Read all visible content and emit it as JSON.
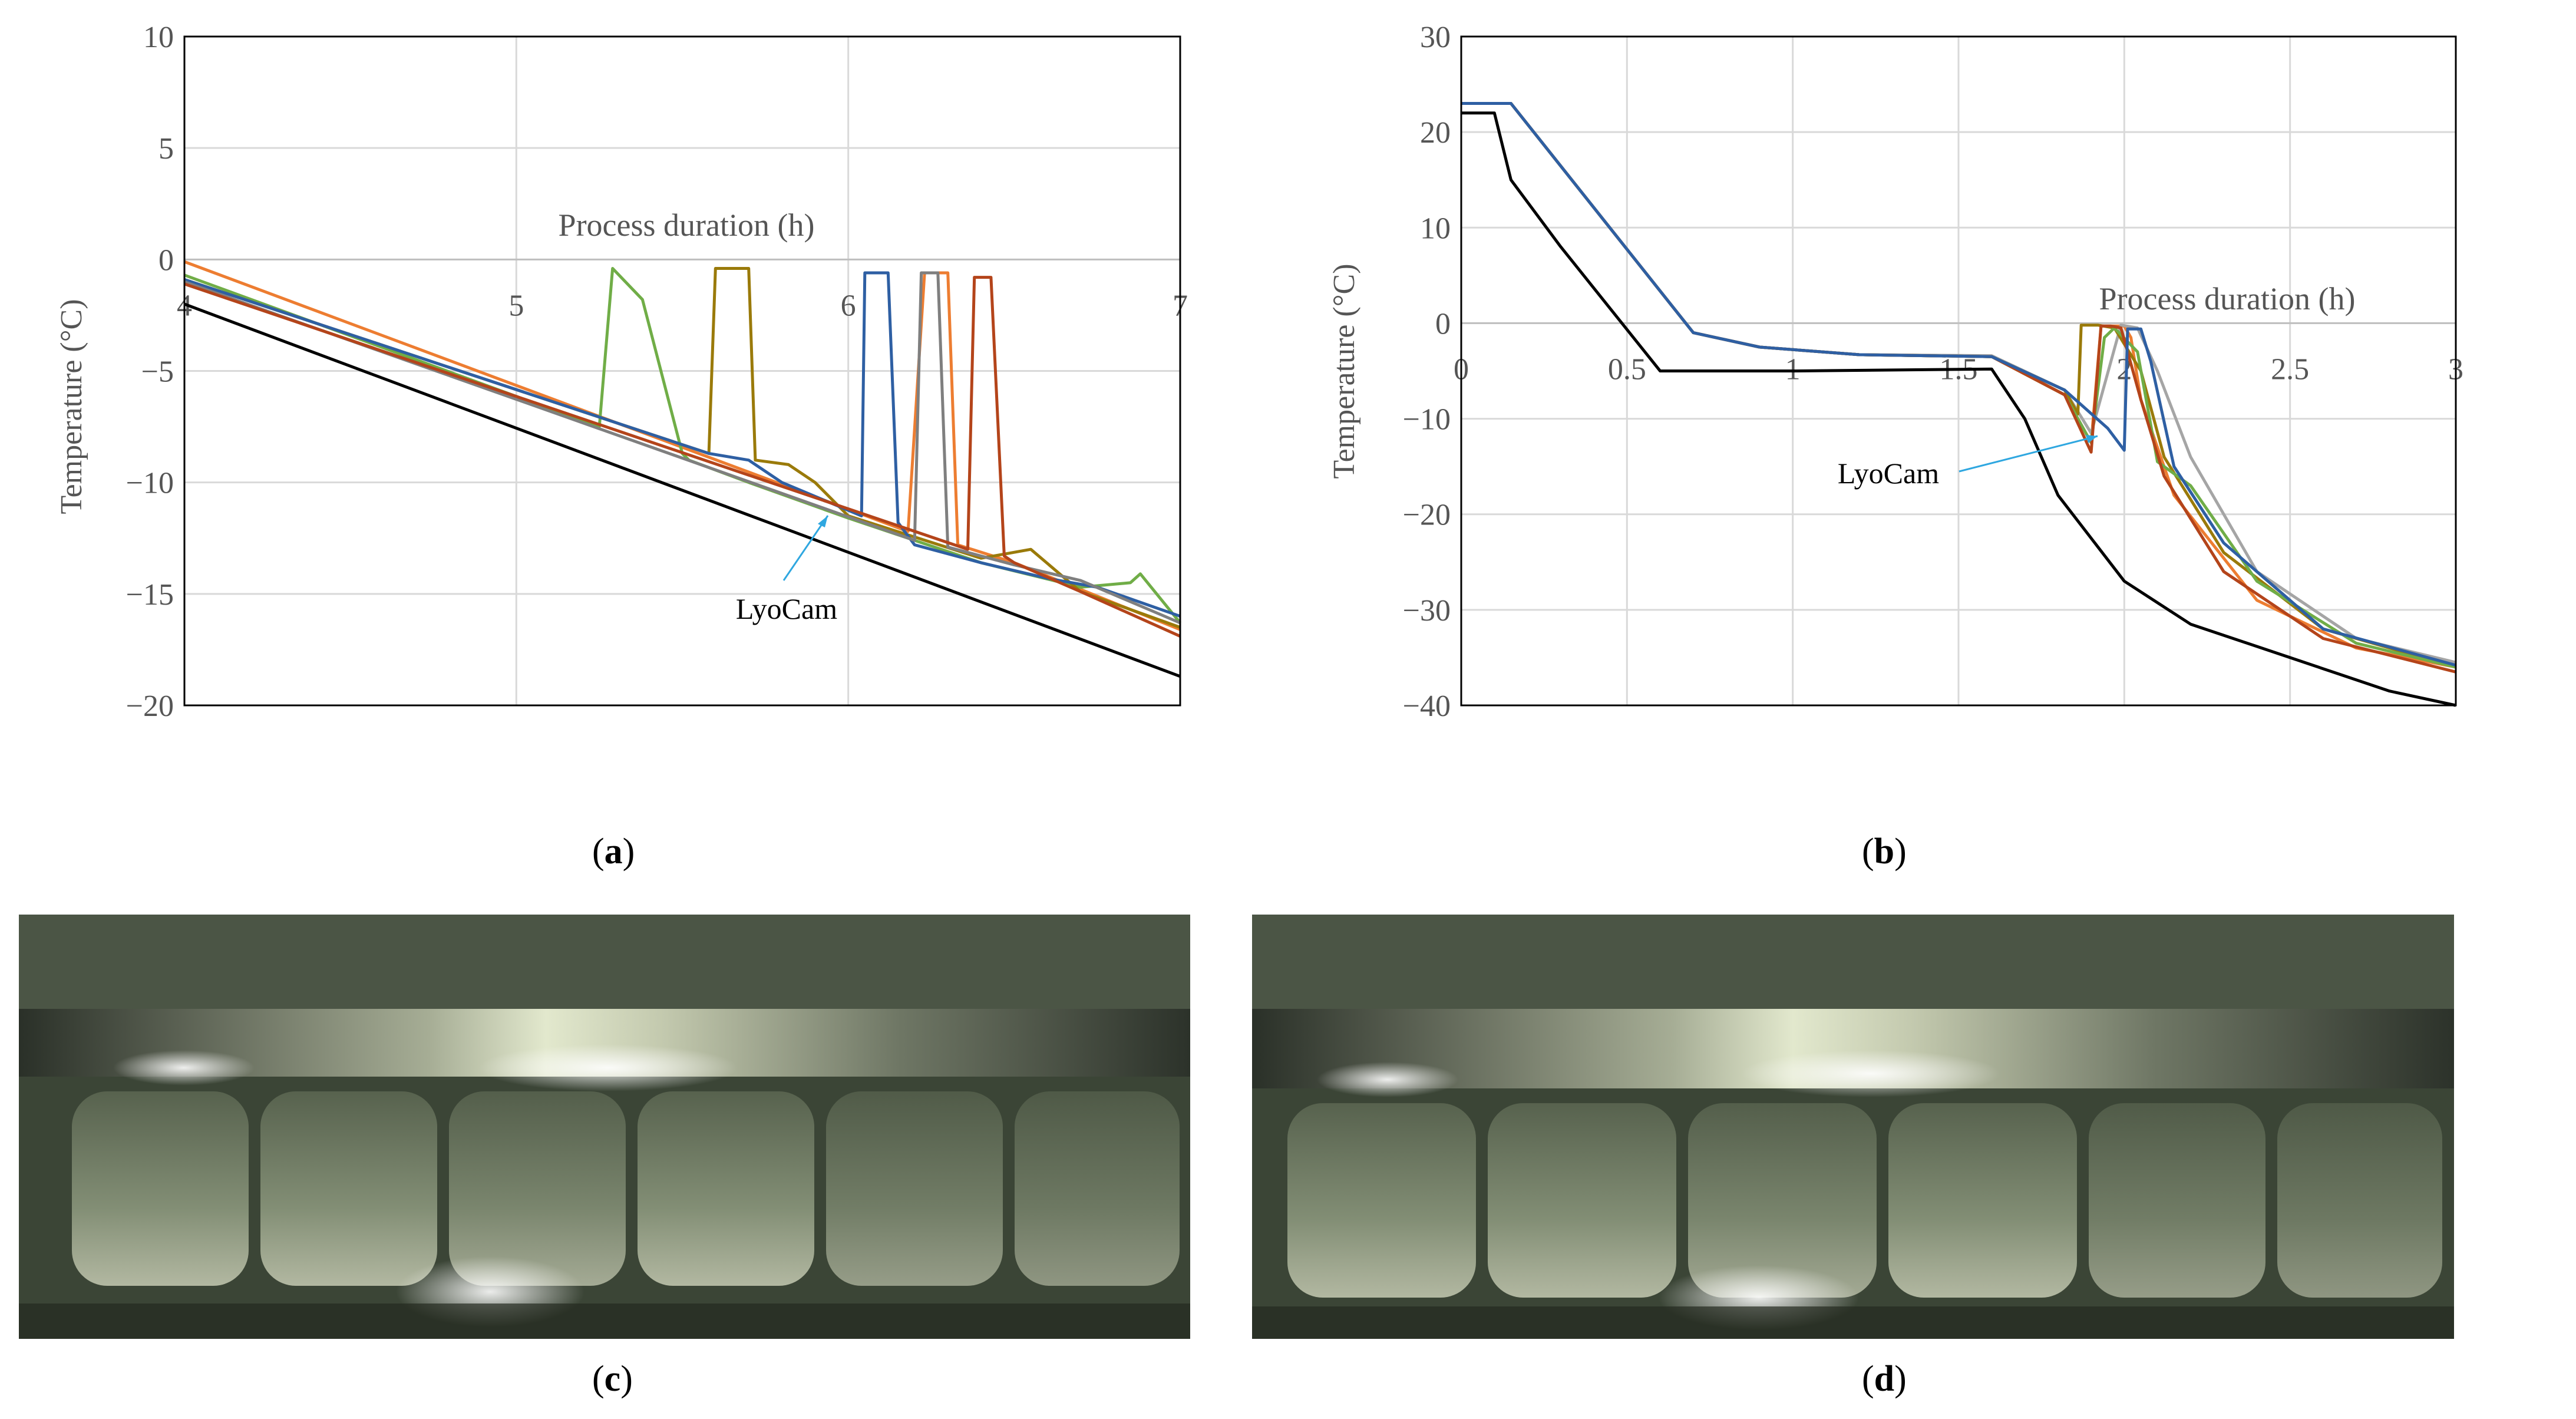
{
  "chart_data": [
    {
      "type": "line",
      "panel": "a",
      "xlabel": "Process duration (h)",
      "ylabel": "Temperature (°C)",
      "xlim": [
        4,
        7
      ],
      "ylim": [
        -20,
        10
      ],
      "xticks": [
        4,
        5,
        6,
        7
      ],
      "yticks": [
        10,
        5,
        0,
        -5,
        -10,
        -15,
        -20
      ],
      "ytick_labels": [
        "10",
        "5",
        "0",
        "−5",
        "−10",
        "−15",
        "−20"
      ],
      "grid": true,
      "annotation": "LyoCam",
      "annotation_point": [
        5.93,
        -11.4
      ],
      "series": [
        {
          "name": "black",
          "color": "#000000",
          "x": [
            4,
            7
          ],
          "y": [
            -2.0,
            -18.7
          ]
        },
        {
          "name": "orange",
          "color": "#ed7d31",
          "x": [
            4,
            6.18,
            6.23,
            6.3,
            6.33,
            6.5,
            6.75,
            7
          ],
          "y": [
            -0.1,
            -12.2,
            -0.6,
            -0.6,
            -12.8,
            -13.6,
            -15.1,
            -16.6
          ]
        },
        {
          "name": "green",
          "color": "#70ad47",
          "x": [
            4,
            5.25,
            5.29,
            5.38,
            5.5,
            5.52,
            5.7,
            6.0,
            6.4,
            6.7,
            6.85,
            6.88,
            7
          ],
          "y": [
            -0.7,
            -7.5,
            -0.4,
            -1.8,
            -8.7,
            -9.0,
            -10.0,
            -11.6,
            -13.6,
            -14.7,
            -14.5,
            -14.1,
            -16.3
          ]
        },
        {
          "name": "olive",
          "color": "#9a7a0a",
          "x": [
            4,
            5.58,
            5.6,
            5.7,
            5.72,
            5.82,
            5.9,
            6.0,
            6.4,
            6.55,
            6.7,
            7
          ],
          "y": [
            -0.9,
            -8.7,
            -0.4,
            -0.4,
            -9.0,
            -9.2,
            -10.0,
            -11.5,
            -13.4,
            -13.0,
            -14.9,
            -16.5
          ]
        },
        {
          "name": "blue",
          "color": "#2e5fa3",
          "x": [
            4,
            5.58,
            5.7,
            5.8,
            6.04,
            6.05,
            6.12,
            6.15,
            6.2,
            6.4,
            6.6,
            6.75,
            7
          ],
          "y": [
            -0.9,
            -8.7,
            -9.0,
            -10.0,
            -11.5,
            -0.6,
            -0.6,
            -11.8,
            -12.8,
            -13.6,
            -14.3,
            -14.7,
            -16.0
          ]
        },
        {
          "name": "gray",
          "color": "#7f7f7f",
          "x": [
            4,
            6.2,
            6.22,
            6.27,
            6.3,
            6.5,
            6.7,
            7
          ],
          "y": [
            -1.0,
            -12.6,
            -0.6,
            -0.6,
            -12.9,
            -13.7,
            -14.4,
            -16.3
          ]
        },
        {
          "name": "brown",
          "color": "#b4441a",
          "x": [
            4,
            6.36,
            6.38,
            6.43,
            6.47,
            6.5,
            6.7,
            7
          ],
          "y": [
            -1.1,
            -13.0,
            -0.8,
            -0.8,
            -13.3,
            -13.6,
            -14.9,
            -16.9
          ]
        }
      ]
    },
    {
      "type": "line",
      "panel": "b",
      "xlabel": "Process duration (h)",
      "ylabel": "Temperature (°C)",
      "xlim": [
        0,
        3
      ],
      "ylim": [
        -40,
        30
      ],
      "xticks": [
        0,
        0.5,
        1,
        1.5,
        2,
        2.5,
        3
      ],
      "xtick_labels": [
        "0",
        "0.5",
        "1",
        "1.5",
        "2",
        "2.5",
        "3"
      ],
      "yticks": [
        30,
        20,
        10,
        0,
        -10,
        -20,
        -30,
        -40
      ],
      "ytick_labels": [
        "30",
        "20",
        "10",
        "0",
        "−10",
        "−20",
        "−30",
        "−40"
      ],
      "grid": true,
      "annotation": "LyoCam",
      "annotation_point": [
        1.92,
        -10.5
      ],
      "series": [
        {
          "name": "black",
          "color": "#000000",
          "x": [
            0,
            0.1,
            0.15,
            0.3,
            0.6,
            1.0,
            1.6,
            1.7,
            1.8,
            2.0,
            2.2,
            2.5,
            2.8,
            3.0
          ],
          "y": [
            22.0,
            22.0,
            15.0,
            8.0,
            -5.0,
            -5.0,
            -4.8,
            -10.0,
            -18.0,
            -27.0,
            -31.5,
            -35.0,
            -38.5,
            -40.0
          ]
        },
        {
          "name": "orange",
          "color": "#ed7d31",
          "x": [
            0,
            0.15,
            0.7,
            0.9,
            1.2,
            1.6,
            1.82,
            1.9,
            1.93,
            1.96,
            2.0,
            2.02,
            2.05,
            2.15,
            2.4,
            2.7,
            3.0
          ],
          "y": [
            23,
            23,
            -1,
            -2.5,
            -3.3,
            -3.5,
            -7.5,
            -12.5,
            -0.3,
            -0.3,
            -0.3,
            -1.5,
            -8.0,
            -18.0,
            -29.0,
            -34.0,
            -36.0
          ]
        },
        {
          "name": "gray",
          "color": "#a5a5a5",
          "x": [
            0,
            0.15,
            0.7,
            0.9,
            1.2,
            1.6,
            1.82,
            1.9,
            1.99,
            2.04,
            2.1,
            2.2,
            2.4,
            2.7,
            3.0
          ],
          "y": [
            23,
            23,
            -1,
            -2.5,
            -3.3,
            -3.4,
            -7.0,
            -11.5,
            -0.2,
            -0.5,
            -5.0,
            -14.0,
            -26.0,
            -33.0,
            -35.5
          ]
        },
        {
          "name": "olive",
          "color": "#9a7a0a",
          "x": [
            0,
            0.15,
            0.7,
            0.9,
            1.2,
            1.6,
            1.82,
            1.86,
            1.87,
            1.92,
            1.97,
            2.05,
            2.12,
            2.3,
            2.6,
            3.0
          ],
          "y": [
            23,
            23,
            -1,
            -2.5,
            -3.3,
            -3.5,
            -7.0,
            -9.5,
            -0.2,
            -0.2,
            -0.5,
            -5.0,
            -14.0,
            -24.0,
            -32.0,
            -36.0
          ]
        },
        {
          "name": "green",
          "color": "#70ad47",
          "x": [
            0,
            0.15,
            0.7,
            0.9,
            1.2,
            1.6,
            1.82,
            1.9,
            1.94,
            1.97,
            2.04,
            2.1,
            2.2,
            2.4,
            2.7,
            3.0
          ],
          "y": [
            23,
            23,
            -1,
            -2.5,
            -3.3,
            -3.5,
            -7.5,
            -12.5,
            -1.5,
            -0.5,
            -3.0,
            -14.5,
            -17.0,
            -27.0,
            -33.5,
            -36.0
          ]
        },
        {
          "name": "brown",
          "color": "#b4441a",
          "x": [
            0,
            0.15,
            0.7,
            0.9,
            1.2,
            1.6,
            1.82,
            1.9,
            1.93,
            1.96,
            1.99,
            2.05,
            2.12,
            2.3,
            2.6,
            3.0
          ],
          "y": [
            23,
            23,
            -1,
            -2.5,
            -3.3,
            -3.5,
            -7.5,
            -13.5,
            -0.3,
            -0.3,
            -0.5,
            -8.0,
            -16.0,
            -26.0,
            -33.0,
            -36.5
          ]
        },
        {
          "name": "blue",
          "color": "#2e5fa3",
          "x": [
            0,
            0.15,
            0.7,
            0.9,
            1.2,
            1.6,
            1.82,
            1.95,
            2.0,
            2.01,
            2.05,
            2.08,
            2.15,
            2.3,
            2.6,
            3.0
          ],
          "y": [
            23,
            23,
            -1,
            -2.5,
            -3.3,
            -3.5,
            -7.0,
            -11.0,
            -13.3,
            -0.6,
            -0.6,
            -4.0,
            -15.0,
            -23.0,
            -32.0,
            -35.8
          ]
        }
      ]
    }
  ],
  "captions": {
    "a": "a",
    "b": "b",
    "c": "c",
    "d": "d"
  }
}
